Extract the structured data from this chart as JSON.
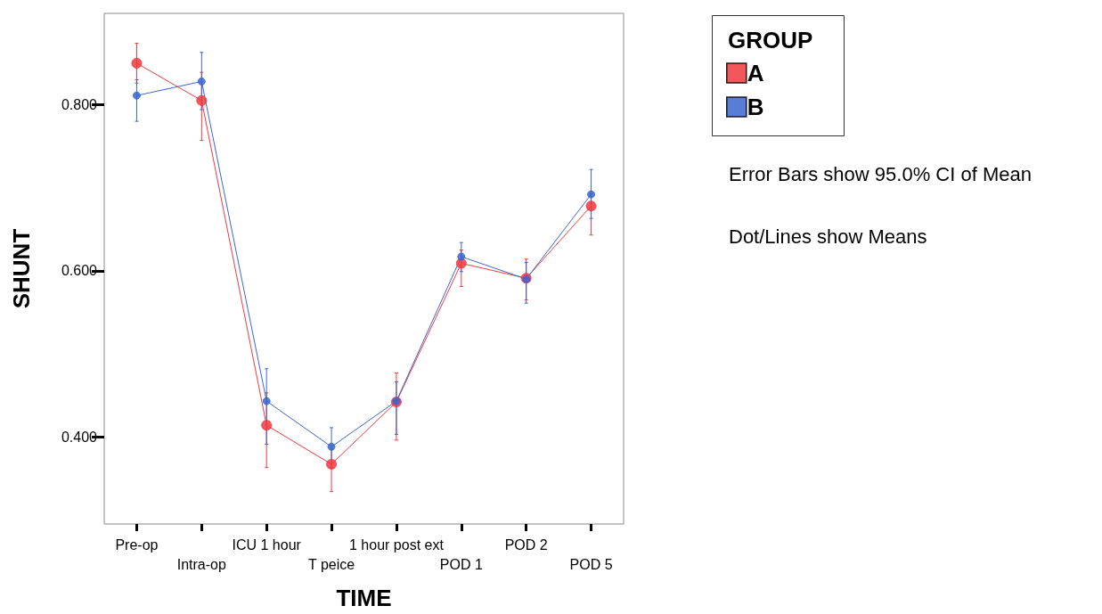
{
  "chart_data": {
    "type": "line",
    "xlabel": "TIME",
    "ylabel": "SHUNT",
    "legend_title": "GROUP",
    "legend": "top right",
    "marker": "circle",
    "line_style": "solid",
    "grid": false,
    "categories": [
      "Pre-op",
      "Intra-op",
      "ICU 1 hour",
      "T peice",
      "1 hour post ext",
      "POD 1",
      "POD 2",
      "POD 5"
    ],
    "ylim": [
      0.295,
      0.91
    ],
    "yticks": [
      {
        "value": 0.4,
        "label": "0.400"
      },
      {
        "value": 0.6,
        "label": "0.600"
      },
      {
        "value": 0.8,
        "label": "0.800"
      }
    ],
    "series": [
      {
        "name": "A",
        "color": "#f0393f",
        "values": [
          0.85,
          0.805,
          0.414,
          0.367,
          0.442,
          0.609,
          0.591,
          0.678
        ],
        "errors": [
          [
            0.826,
            0.874
          ],
          [
            0.757,
            0.839
          ],
          [
            0.363,
            0.453
          ],
          [
            0.334,
            0.386
          ],
          [
            0.396,
            0.477
          ],
          [
            0.581,
            0.625
          ],
          [
            0.565,
            0.614
          ],
          [
            0.643,
            0.693
          ]
        ]
      },
      {
        "name": "B",
        "color": "#3a66d0",
        "values": [
          0.811,
          0.828,
          0.443,
          0.388,
          0.443,
          0.617,
          0.59,
          0.692
        ],
        "errors": [
          [
            0.78,
            0.83
          ],
          [
            0.794,
            0.863
          ],
          [
            0.391,
            0.482
          ],
          [
            0.363,
            0.411
          ],
          [
            0.403,
            0.466
          ],
          [
            0.599,
            0.634
          ],
          [
            0.561,
            0.61
          ],
          [
            0.663,
            0.722
          ]
        ]
      }
    ],
    "annotations": [
      "Error Bars show 95.0% CI of Mean",
      "Dot/Lines show Means"
    ]
  }
}
